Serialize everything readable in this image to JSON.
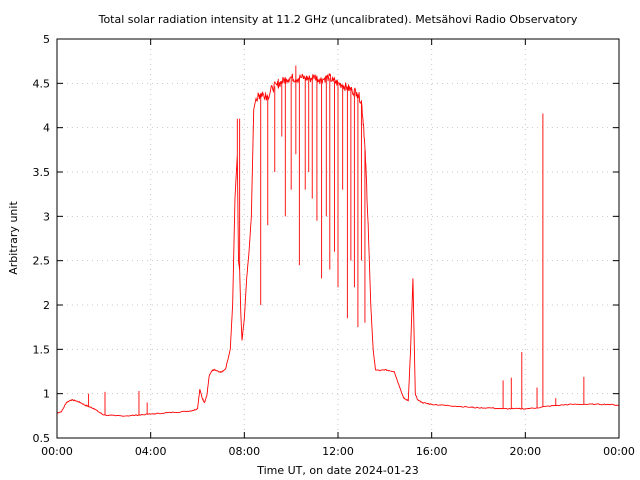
{
  "chart_data": {
    "type": "line",
    "title": "Total solar radiation intensity at 11.2 GHz (uncalibrated). Metsähovi Radio Observatory",
    "xlabel": "Time UT, on date 2024-01-23",
    "ylabel": "Arbitrary unit",
    "xlim": [
      0,
      24
    ],
    "ylim": [
      0.5,
      5
    ],
    "xticks": [
      {
        "value": 0,
        "label": "00:00"
      },
      {
        "value": 4,
        "label": "04:00"
      },
      {
        "value": 8,
        "label": "08:00"
      },
      {
        "value": 12,
        "label": "12:00"
      },
      {
        "value": 16,
        "label": "16:00"
      },
      {
        "value": 20,
        "label": "20:00"
      },
      {
        "value": 24,
        "label": "00:00"
      }
    ],
    "yticks": [
      {
        "value": 0.5,
        "label": "0.5"
      },
      {
        "value": 1,
        "label": "1"
      },
      {
        "value": 1.5,
        "label": "1.5"
      },
      {
        "value": 2,
        "label": "2"
      },
      {
        "value": 2.5,
        "label": "2.5"
      },
      {
        "value": 3,
        "label": "3"
      },
      {
        "value": 3.5,
        "label": "3.5"
      },
      {
        "value": 4,
        "label": "4"
      },
      {
        "value": 4.5,
        "label": "4.5"
      },
      {
        "value": 5,
        "label": "5"
      }
    ],
    "grid": true,
    "grid_style": "dotted",
    "series": [
      {
        "color": "#ff0000",
        "x": [
          0,
          0.2,
          0.4,
          0.6,
          0.8,
          1.0,
          1.2,
          1.4,
          1.6,
          1.8,
          2.0,
          2.5,
          3.0,
          3.5,
          4.0,
          4.5,
          5.0,
          5.5,
          5.8,
          6.0,
          6.1,
          6.2,
          6.3,
          6.4,
          6.5,
          6.6,
          6.7,
          6.8,
          7.0,
          7.2,
          7.4,
          7.5,
          7.6,
          7.7,
          7.75,
          7.8,
          7.85,
          7.9,
          8.0,
          8.1,
          8.2,
          8.3,
          8.4,
          8.5,
          8.6,
          8.7,
          8.8,
          9.0,
          9.2,
          9.4,
          9.6,
          9.8,
          10.0,
          10.2,
          10.4,
          10.6,
          10.8,
          11.0,
          11.2,
          11.4,
          11.6,
          11.8,
          12.0,
          12.2,
          12.4,
          12.6,
          12.8,
          13.0,
          13.1,
          13.2,
          13.3,
          13.4,
          13.5,
          13.6,
          13.8,
          14.0,
          14.2,
          14.4,
          14.6,
          14.8,
          15.0,
          15.1,
          15.2,
          15.3,
          15.4,
          15.6,
          15.8,
          16.0,
          16.5,
          17.0,
          17.5,
          18.0,
          18.5,
          19.0,
          19.5,
          20.0,
          20.5,
          21.0,
          21.5,
          22.0,
          22.5,
          23.0,
          23.5,
          24.0
        ],
        "y": [
          0.78,
          0.8,
          0.9,
          0.93,
          0.92,
          0.9,
          0.87,
          0.85,
          0.83,
          0.79,
          0.76,
          0.75,
          0.75,
          0.76,
          0.77,
          0.78,
          0.79,
          0.8,
          0.81,
          0.83,
          1.05,
          0.95,
          0.9,
          0.98,
          1.2,
          1.25,
          1.27,
          1.26,
          1.24,
          1.28,
          1.5,
          2.0,
          3.2,
          3.7,
          2.5,
          2.4,
          1.9,
          1.6,
          1.85,
          2.3,
          2.6,
          3.0,
          4.2,
          4.33,
          4.35,
          4.38,
          4.38,
          4.35,
          4.45,
          4.48,
          4.52,
          4.55,
          4.57,
          4.55,
          4.57,
          4.56,
          4.55,
          4.58,
          4.54,
          4.55,
          4.57,
          4.53,
          4.5,
          4.48,
          4.45,
          4.42,
          4.4,
          4.3,
          4.0,
          3.5,
          2.8,
          2.0,
          1.5,
          1.27,
          1.26,
          1.27,
          1.26,
          1.25,
          1.1,
          0.95,
          0.92,
          1.5,
          2.3,
          1.0,
          0.93,
          0.9,
          0.89,
          0.88,
          0.87,
          0.86,
          0.85,
          0.84,
          0.84,
          0.83,
          0.83,
          0.83,
          0.84,
          0.86,
          0.87,
          0.88,
          0.88,
          0.88,
          0.88,
          0.87
        ]
      }
    ],
    "spikes": [
      {
        "x": 1.35,
        "y": 1.0
      },
      {
        "x": 2.05,
        "y": 1.02
      },
      {
        "x": 3.5,
        "y": 1.03
      },
      {
        "x": 3.85,
        "y": 0.9
      },
      {
        "x": 7.7,
        "y": 4.1
      },
      {
        "x": 7.8,
        "y": 4.1
      },
      {
        "x": 8.9,
        "y": 4.4
      },
      {
        "x": 9.45,
        "y": 4.55
      },
      {
        "x": 10.2,
        "y": 4.7
      },
      {
        "x": 19.05,
        "y": 1.15
      },
      {
        "x": 19.4,
        "y": 1.18
      },
      {
        "x": 19.85,
        "y": 1.47
      },
      {
        "x": 20.5,
        "y": 1.07
      },
      {
        "x": 20.75,
        "y": 4.16
      },
      {
        "x": 21.3,
        "y": 0.95
      },
      {
        "x": 22.5,
        "y": 1.19
      }
    ],
    "dips": [
      {
        "x": 8.7,
        "y": 2.0
      },
      {
        "x": 9.0,
        "y": 2.9
      },
      {
        "x": 9.3,
        "y": 3.5
      },
      {
        "x": 9.6,
        "y": 3.9
      },
      {
        "x": 9.75,
        "y": 3.0
      },
      {
        "x": 10.0,
        "y": 3.3
      },
      {
        "x": 10.2,
        "y": 3.7
      },
      {
        "x": 10.35,
        "y": 2.45
      },
      {
        "x": 10.6,
        "y": 3.3
      },
      {
        "x": 10.75,
        "y": 3.5
      },
      {
        "x": 10.9,
        "y": 3.2
      },
      {
        "x": 11.1,
        "y": 2.95
      },
      {
        "x": 11.3,
        "y": 2.3
      },
      {
        "x": 11.5,
        "y": 3.0
      },
      {
        "x": 11.65,
        "y": 2.4
      },
      {
        "x": 11.85,
        "y": 2.6
      },
      {
        "x": 12.0,
        "y": 2.2
      },
      {
        "x": 12.2,
        "y": 3.3
      },
      {
        "x": 12.4,
        "y": 1.85
      },
      {
        "x": 12.55,
        "y": 2.5
      },
      {
        "x": 12.7,
        "y": 2.2
      },
      {
        "x": 12.85,
        "y": 1.75
      },
      {
        "x": 13.0,
        "y": 2.5
      },
      {
        "x": 13.15,
        "y": 1.8
      }
    ]
  }
}
